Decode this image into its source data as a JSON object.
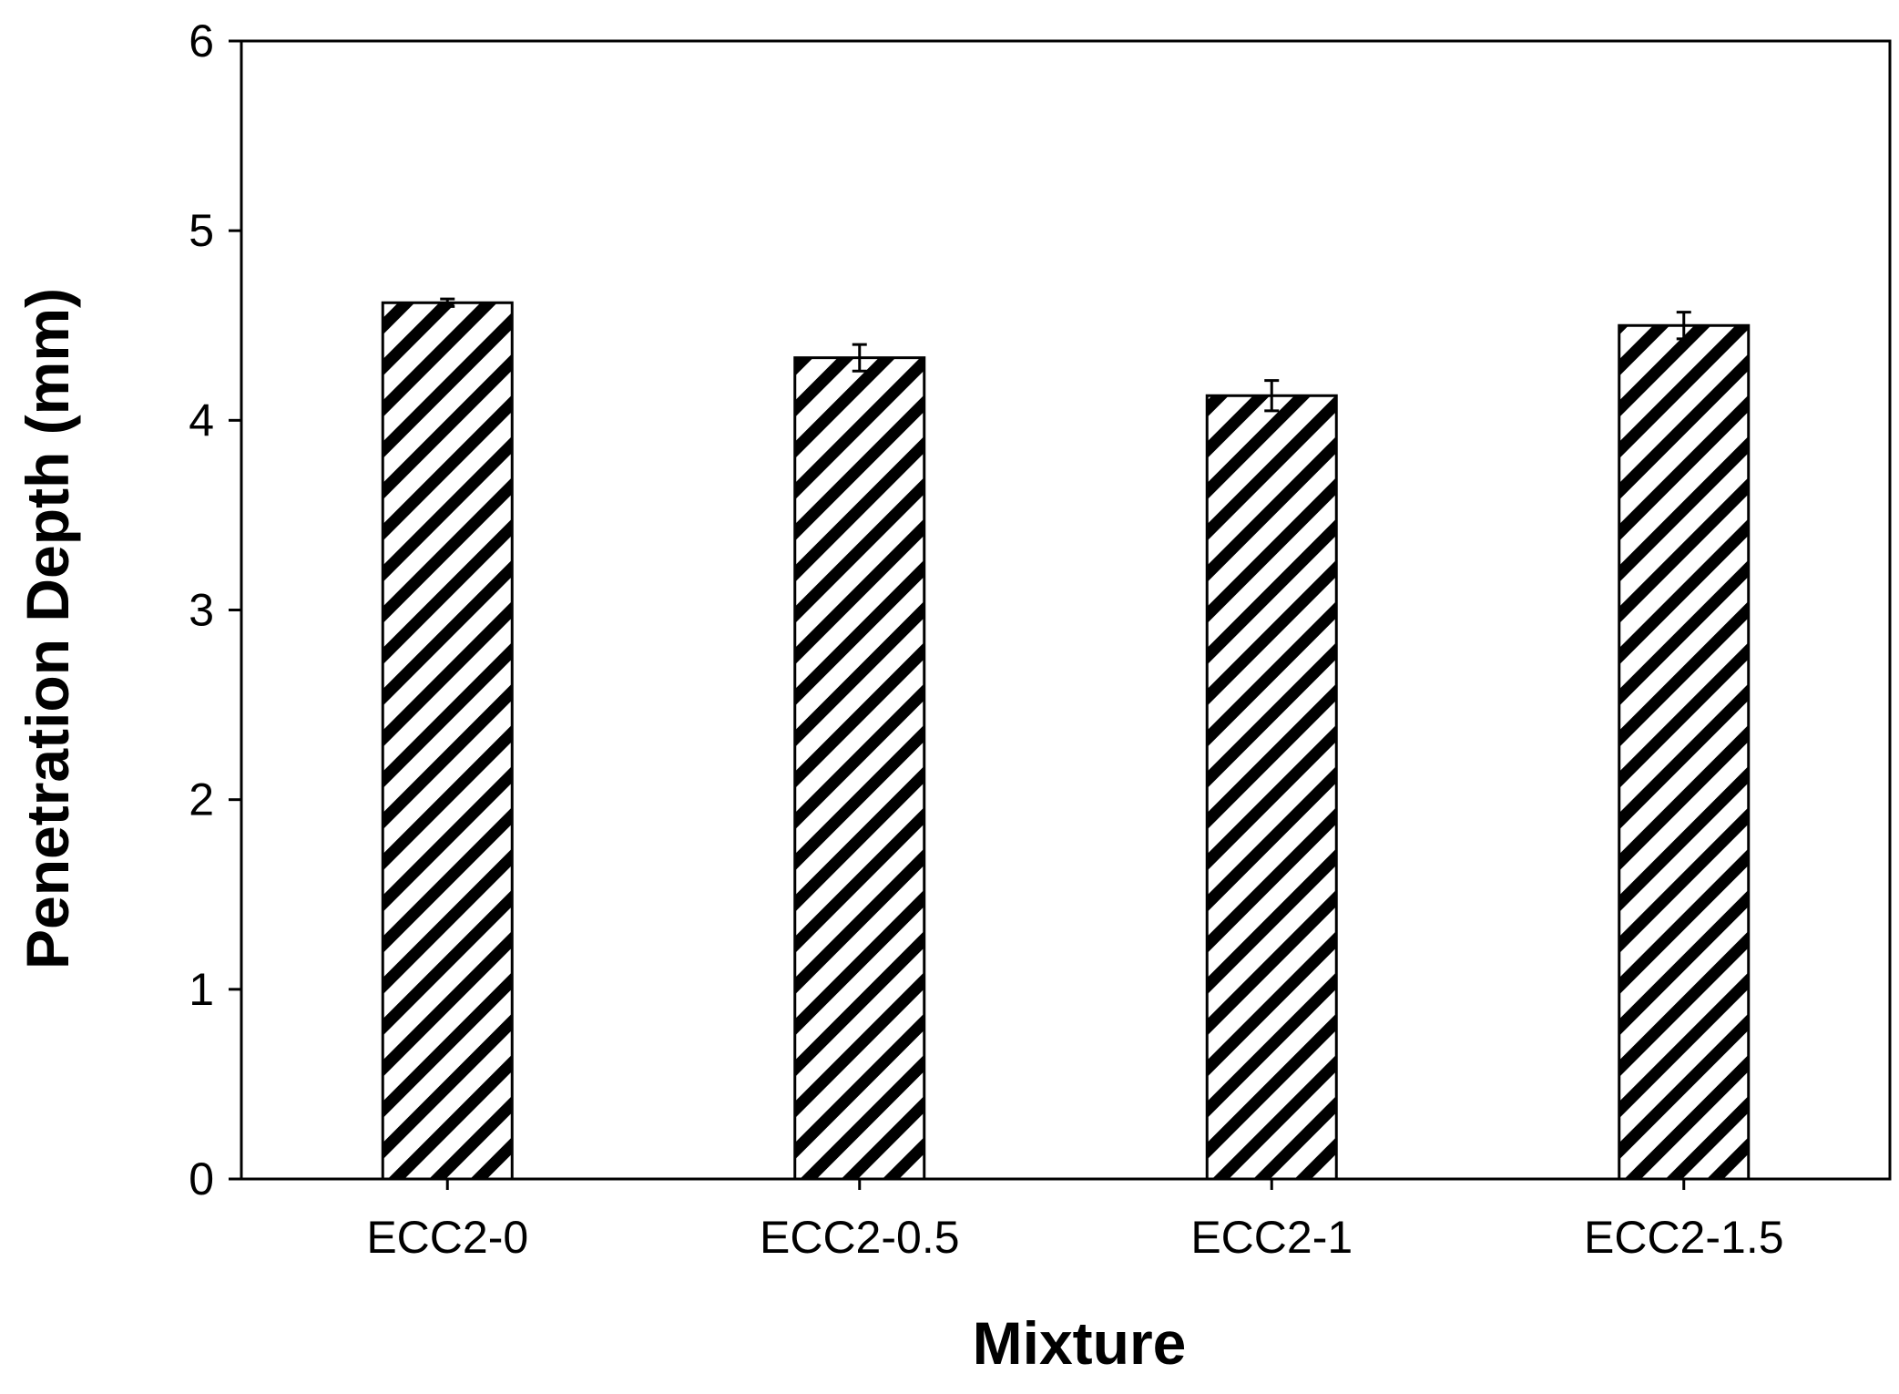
{
  "chart_data": {
    "type": "bar",
    "title": "",
    "xlabel": "Mixture",
    "ylabel": "Penetration Depth (mm)",
    "categories": [
      "ECC2-0",
      "ECC2-0.5",
      "ECC2-1",
      "ECC2-1.5"
    ],
    "values": [
      4.62,
      4.33,
      4.13,
      4.5
    ],
    "error": [
      0.02,
      0.07,
      0.08,
      0.07
    ],
    "ylim": [
      0,
      6
    ],
    "yticks": [
      "0",
      "1",
      "2",
      "3",
      "4",
      "5",
      "6"
    ],
    "grid": false,
    "legend": "none",
    "bar_fill": "diagonal black/white hatch",
    "colors": {
      "stroke": "#000000",
      "hatch": "#000000",
      "background": "#ffffff"
    }
  }
}
